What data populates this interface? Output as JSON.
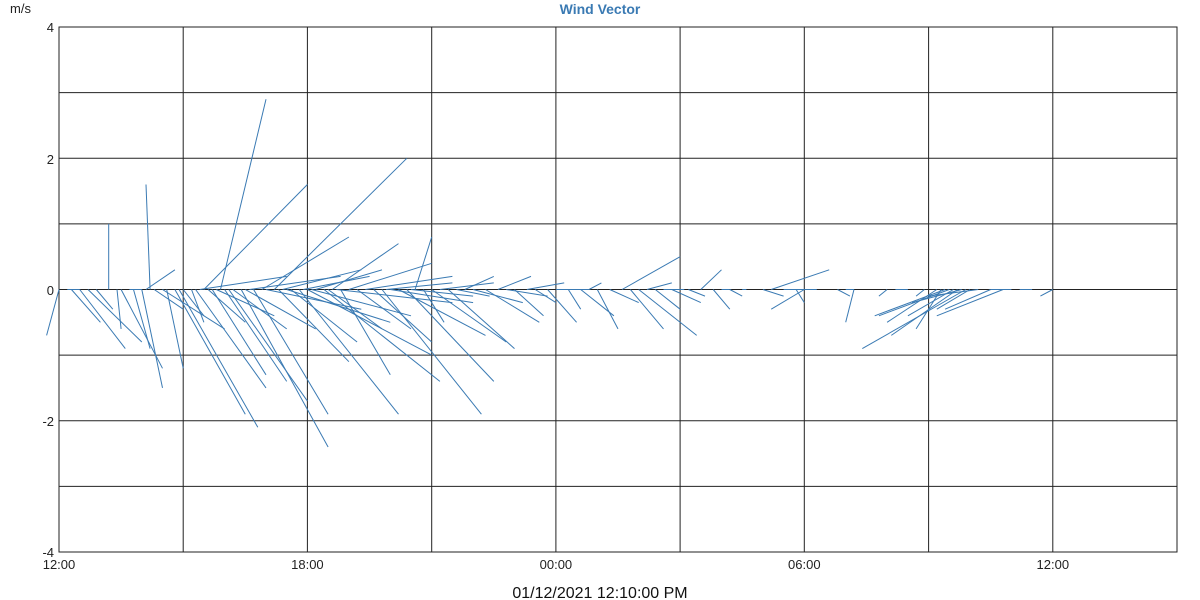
{
  "chart": {
    "title": "Wind Vector",
    "y_unit": "m/s",
    "x_tick_labels": [
      "12:00",
      "18:00",
      "00:00",
      "06:00",
      "12:00"
    ],
    "y_tick_labels": [
      "4",
      "2",
      "0",
      "-2",
      "-4"
    ],
    "timestamp": "01/12/2021 12:10:00 PM"
  },
  "chart_data": {
    "type": "vector",
    "title": "Wind Vector",
    "ylabel": "m/s",
    "xlabel": "",
    "ylim": [
      -4,
      4
    ],
    "xlim_hours": [
      0,
      27
    ],
    "x_ticks_hours": [
      0,
      6,
      12,
      18,
      24
    ],
    "y_ticks": [
      -4,
      -2,
      0,
      2,
      4
    ],
    "grid": true,
    "color": "#3a7ab3",
    "vectors": [
      [
        0.0,
        -0.3,
        -0.7
      ],
      [
        0.2,
        0.5,
        0.0
      ],
      [
        0.3,
        1.0,
        -0.5
      ],
      [
        0.5,
        1.6,
        -0.9
      ],
      [
        0.7,
        2.0,
        -0.8
      ],
      [
        0.9,
        1.3,
        -0.3
      ],
      [
        1.2,
        1.2,
        1.0
      ],
      [
        1.4,
        1.5,
        -0.6
      ],
      [
        1.5,
        2.5,
        -1.2
      ],
      [
        1.7,
        2.0,
        0.0
      ],
      [
        1.8,
        2.2,
        -0.9
      ],
      [
        2.0,
        2.5,
        -1.5
      ],
      [
        2.1,
        2.8,
        0.3
      ],
      [
        2.2,
        2.1,
        1.6
      ],
      [
        2.3,
        3.0,
        -0.3
      ],
      [
        2.5,
        4.0,
        -0.6
      ],
      [
        2.6,
        3.0,
        -1.2
      ],
      [
        2.8,
        4.5,
        -1.9
      ],
      [
        2.9,
        4.8,
        -2.1
      ],
      [
        3.0,
        3.5,
        -0.4
      ],
      [
        3.2,
        3.5,
        -0.5
      ],
      [
        3.3,
        5.0,
        -1.5
      ],
      [
        3.4,
        5.5,
        0.2
      ],
      [
        3.5,
        6.0,
        1.6
      ],
      [
        3.6,
        4.5,
        -0.5
      ],
      [
        3.7,
        5.0,
        -1.3
      ],
      [
        3.8,
        5.2,
        -0.4
      ],
      [
        3.9,
        5.0,
        2.9
      ],
      [
        4.0,
        5.5,
        -1.4
      ],
      [
        4.1,
        6.0,
        -1.7
      ],
      [
        4.2,
        5.5,
        -0.6
      ],
      [
        4.4,
        6.5,
        -2.4
      ],
      [
        4.5,
        6.2,
        -0.6
      ],
      [
        4.6,
        6.8,
        0.2
      ],
      [
        4.7,
        6.5,
        -1.9
      ],
      [
        4.9,
        7.0,
        0.8
      ],
      [
        5.0,
        7.3,
        -0.3
      ],
      [
        5.2,
        8.4,
        2.0
      ],
      [
        5.3,
        7.0,
        -1.1
      ],
      [
        5.4,
        7.3,
        0.3
      ],
      [
        5.5,
        8.0,
        -0.5
      ],
      [
        5.6,
        7.2,
        -0.8
      ],
      [
        5.8,
        8.2,
        -1.9
      ],
      [
        5.9,
        7.5,
        0.2
      ],
      [
        6.0,
        9.0,
        -1.0
      ],
      [
        6.1,
        8.5,
        -0.4
      ],
      [
        6.2,
        7.8,
        0.3
      ],
      [
        6.4,
        9.2,
        -1.4
      ],
      [
        6.5,
        7.8,
        -0.6
      ],
      [
        6.6,
        8.2,
        0.7
      ],
      [
        6.7,
        9.5,
        -0.2
      ],
      [
        6.8,
        8.0,
        -1.3
      ],
      [
        7.0,
        9.0,
        0.4
      ],
      [
        7.2,
        8.5,
        -0.6
      ],
      [
        7.4,
        9.5,
        0.2
      ],
      [
        7.6,
        9.0,
        -0.8
      ],
      [
        7.8,
        10.2,
        -1.9
      ],
      [
        7.9,
        9.5,
        0.1
      ],
      [
        8.0,
        10.0,
        -0.2
      ],
      [
        8.2,
        10.3,
        -0.7
      ],
      [
        8.4,
        10.5,
        -1.4
      ],
      [
        8.5,
        10.0,
        -0.1
      ],
      [
        8.6,
        9.0,
        0.8
      ],
      [
        8.8,
        9.3,
        -0.5
      ],
      [
        9.0,
        10.8,
        -0.8
      ],
      [
        9.2,
        10.5,
        0.1
      ],
      [
        9.4,
        11.0,
        -0.9
      ],
      [
        9.6,
        10.4,
        -0.1
      ],
      [
        9.8,
        10.5,
        0.2
      ],
      [
        10.0,
        11.2,
        -0.2
      ],
      [
        10.3,
        11.6,
        -0.5
      ],
      [
        10.6,
        11.4,
        0.2
      ],
      [
        10.8,
        11.8,
        -0.1
      ],
      [
        11.0,
        11.7,
        -0.4
      ],
      [
        11.3,
        12.2,
        0.1
      ],
      [
        11.5,
        12.0,
        -0.2
      ],
      [
        11.8,
        12.5,
        -0.5
      ],
      [
        12.0,
        12.8,
        0.0
      ],
      [
        12.3,
        12.6,
        -0.3
      ],
      [
        12.6,
        13.4,
        -0.4
      ],
      [
        12.8,
        13.1,
        0.1
      ],
      [
        13.0,
        13.5,
        -0.6
      ],
      [
        13.3,
        14.0,
        -0.2
      ],
      [
        13.6,
        15.0,
        0.5
      ],
      [
        13.8,
        14.6,
        -0.6
      ],
      [
        14.0,
        15.4,
        -0.7
      ],
      [
        14.2,
        14.8,
        0.1
      ],
      [
        14.4,
        15.0,
        -0.3
      ],
      [
        14.6,
        15.1,
        0.0
      ],
      [
        14.8,
        15.5,
        -0.2
      ],
      [
        15.2,
        15.6,
        -0.1
      ],
      [
        15.5,
        16.0,
        0.3
      ],
      [
        15.8,
        16.2,
        -0.3
      ],
      [
        16.0,
        16.2,
        0.0
      ],
      [
        16.2,
        16.5,
        -0.1
      ],
      [
        16.5,
        16.6,
        0.0
      ],
      [
        17.0,
        17.5,
        -0.1
      ],
      [
        17.2,
        18.6,
        0.3
      ],
      [
        17.8,
        18.0,
        -0.2
      ],
      [
        18.0,
        17.2,
        -0.3
      ],
      [
        18.3,
        17.5,
        0.0
      ],
      [
        18.8,
        19.1,
        -0.1
      ],
      [
        19.0,
        19.2,
        0.0
      ],
      [
        19.2,
        19.0,
        -0.5
      ],
      [
        20.0,
        19.8,
        -0.1
      ],
      [
        20.5,
        20.2,
        0.0
      ],
      [
        20.9,
        20.7,
        -0.1
      ],
      [
        21.2,
        20.0,
        -0.5
      ],
      [
        21.3,
        20.7,
        -0.6
      ],
      [
        21.4,
        19.7,
        -0.4
      ],
      [
        21.5,
        19.8,
        -0.4
      ],
      [
        21.6,
        20.5,
        -0.4
      ],
      [
        21.7,
        20.1,
        -0.7
      ],
      [
        21.8,
        20.6,
        -0.2
      ],
      [
        21.9,
        19.4,
        -0.9
      ],
      [
        22.0,
        21.2,
        -0.3
      ],
      [
        22.2,
        21.0,
        -0.1
      ],
      [
        22.5,
        21.4,
        -0.3
      ],
      [
        22.8,
        21.2,
        -0.4
      ],
      [
        23.0,
        22.5,
        0.0
      ],
      [
        23.2,
        23.5,
        0.0
      ],
      [
        24.0,
        23.7,
        -0.1
      ]
    ]
  }
}
